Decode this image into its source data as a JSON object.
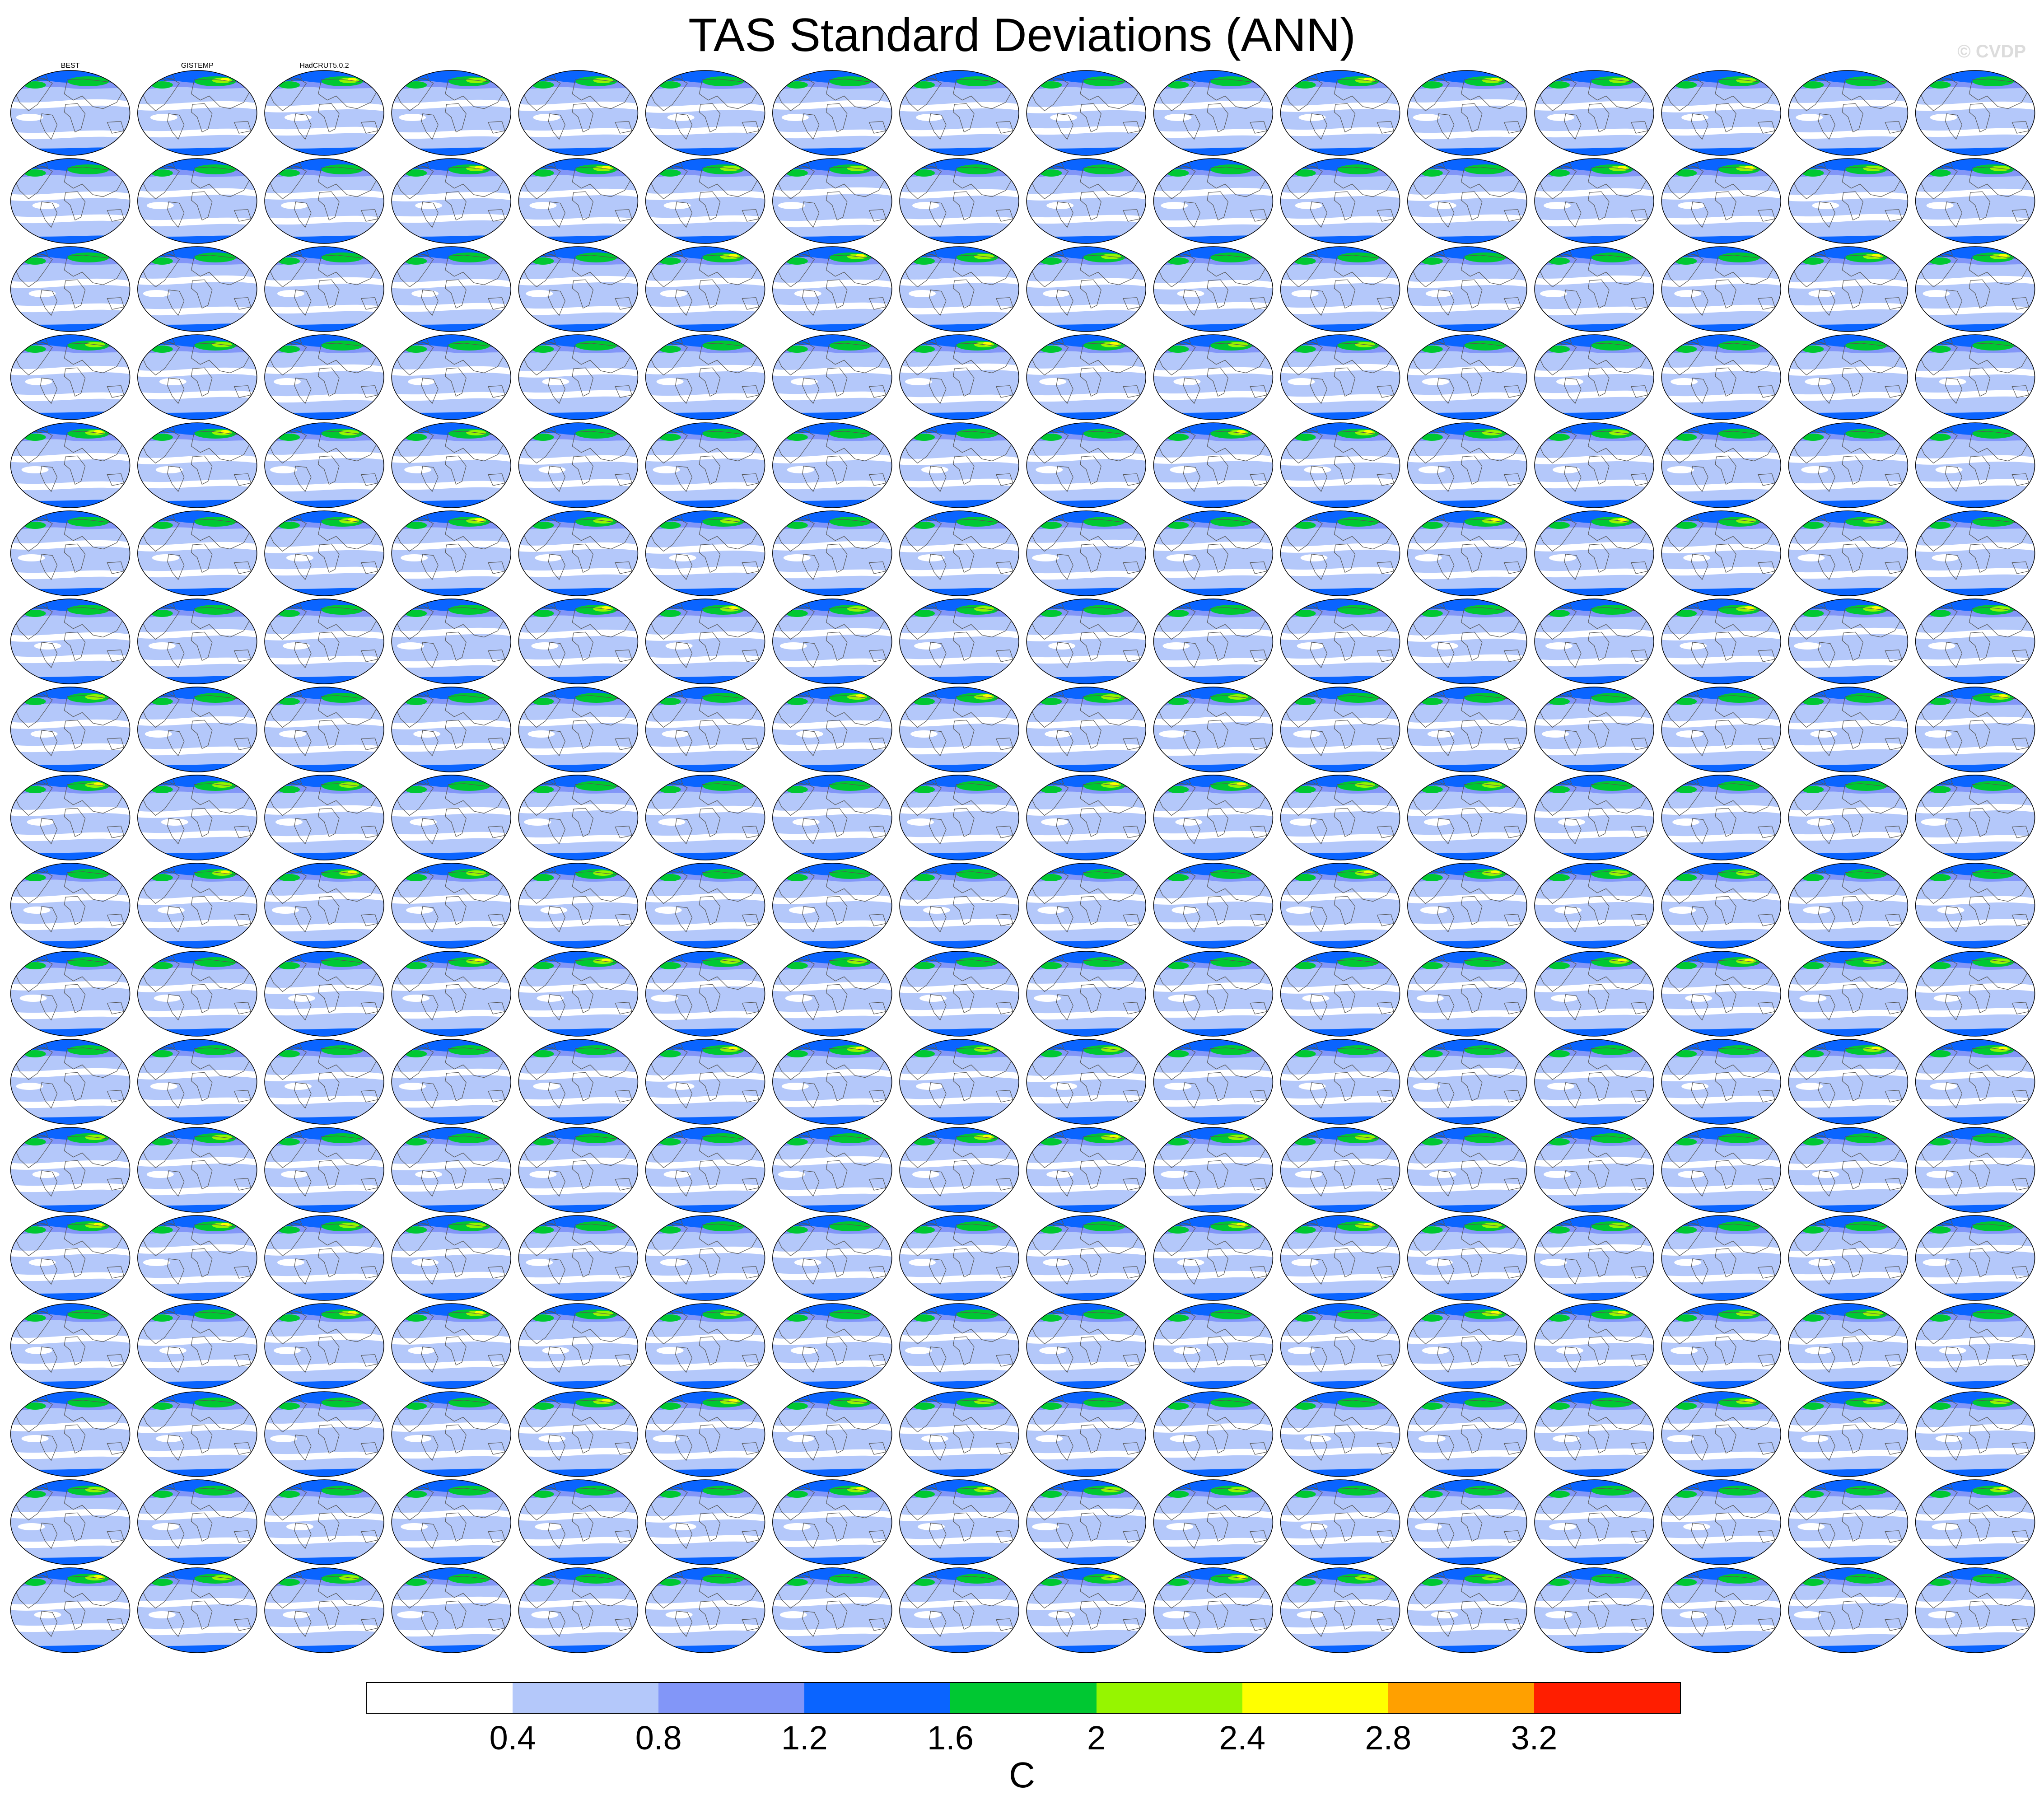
{
  "title": "TAS Standard Deviations (ANN)",
  "credit": "© CVDP",
  "chart_data": {
    "type": "heatmap",
    "title": "TAS Standard Deviations (ANN)",
    "layout": {
      "rows": 18,
      "cols": 16
    },
    "panel_titles_visible": [
      "BEST",
      "GISTEMP",
      "HadCRUT5.0.2"
    ],
    "colorbar": {
      "units": "C",
      "levels": [
        0.4,
        0.8,
        1.2,
        1.6,
        2,
        2.4,
        2.8,
        3.2
      ],
      "level_labels": [
        "0.4",
        "0.8",
        "1.2",
        "1.6",
        "2",
        "2.4",
        "2.8",
        "3.2"
      ],
      "colors": [
        "#ffffff",
        "#b4c8fa",
        "#8296f8",
        "#0a64ff",
        "#00c832",
        "#96f500",
        "#ffff00",
        "#ffa000",
        "#ff1e00"
      ]
    }
  }
}
